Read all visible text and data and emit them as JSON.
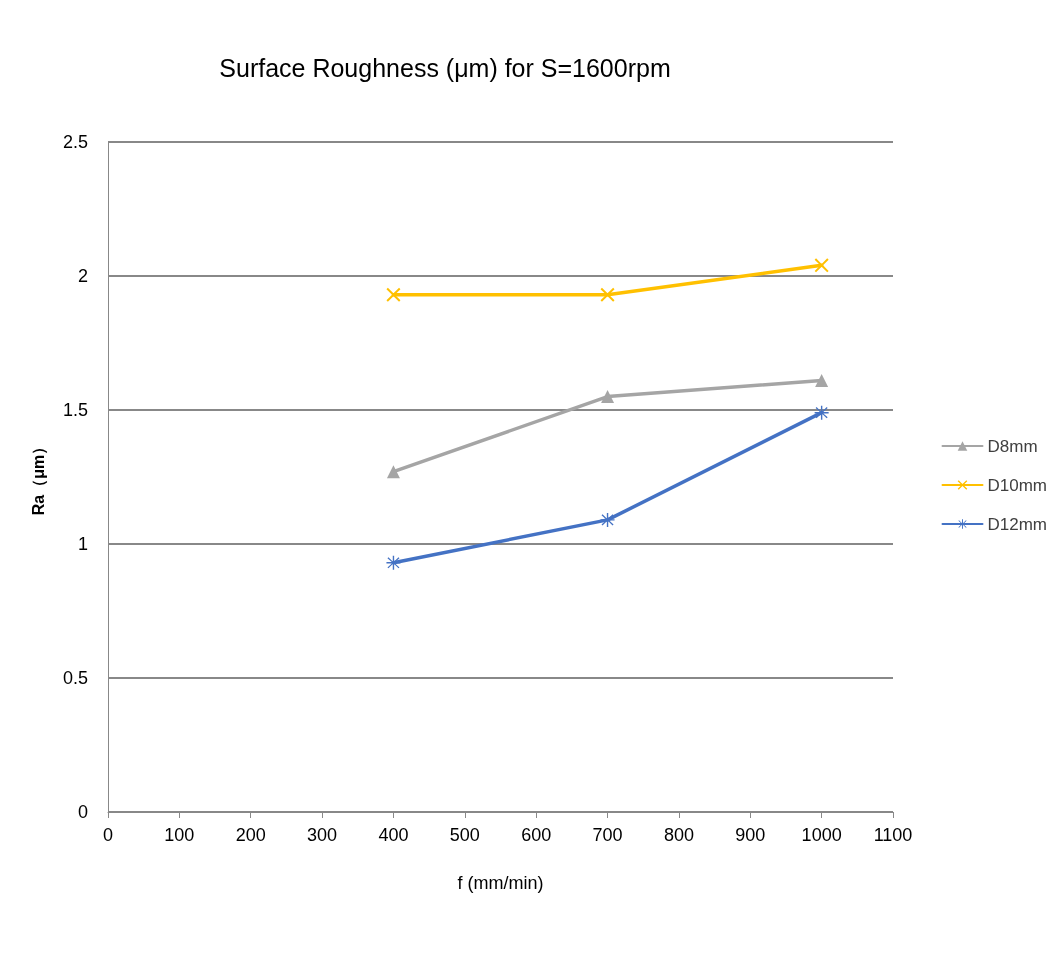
{
  "chart_data": {
    "type": "line",
    "title": "Surface Roughness (μm) for S=1600rpm",
    "xlabel": "f (mm/min)",
    "ylabel": "Ra（μm）",
    "x": [
      400,
      700,
      1000
    ],
    "series": [
      {
        "name": "D8mm",
        "color": "#a5a5a5",
        "marker": "triangle",
        "values": [
          1.27,
          1.55,
          1.61
        ]
      },
      {
        "name": "D10mm",
        "color": "#ffc000",
        "marker": "cross",
        "values": [
          1.93,
          1.93,
          2.04
        ]
      },
      {
        "name": "D12mm",
        "color": "#4472c4",
        "marker": "star",
        "values": [
          0.93,
          1.09,
          1.49
        ]
      }
    ],
    "xlim": [
      0,
      1100
    ],
    "xticks": [
      0,
      100,
      200,
      300,
      400,
      500,
      600,
      700,
      800,
      900,
      1000,
      1100
    ],
    "ylim": [
      0,
      2.5
    ],
    "yticks": [
      0,
      0.5,
      1,
      1.5,
      2,
      2.5
    ],
    "grid": "y",
    "legend": "right",
    "line_style": "solid"
  }
}
